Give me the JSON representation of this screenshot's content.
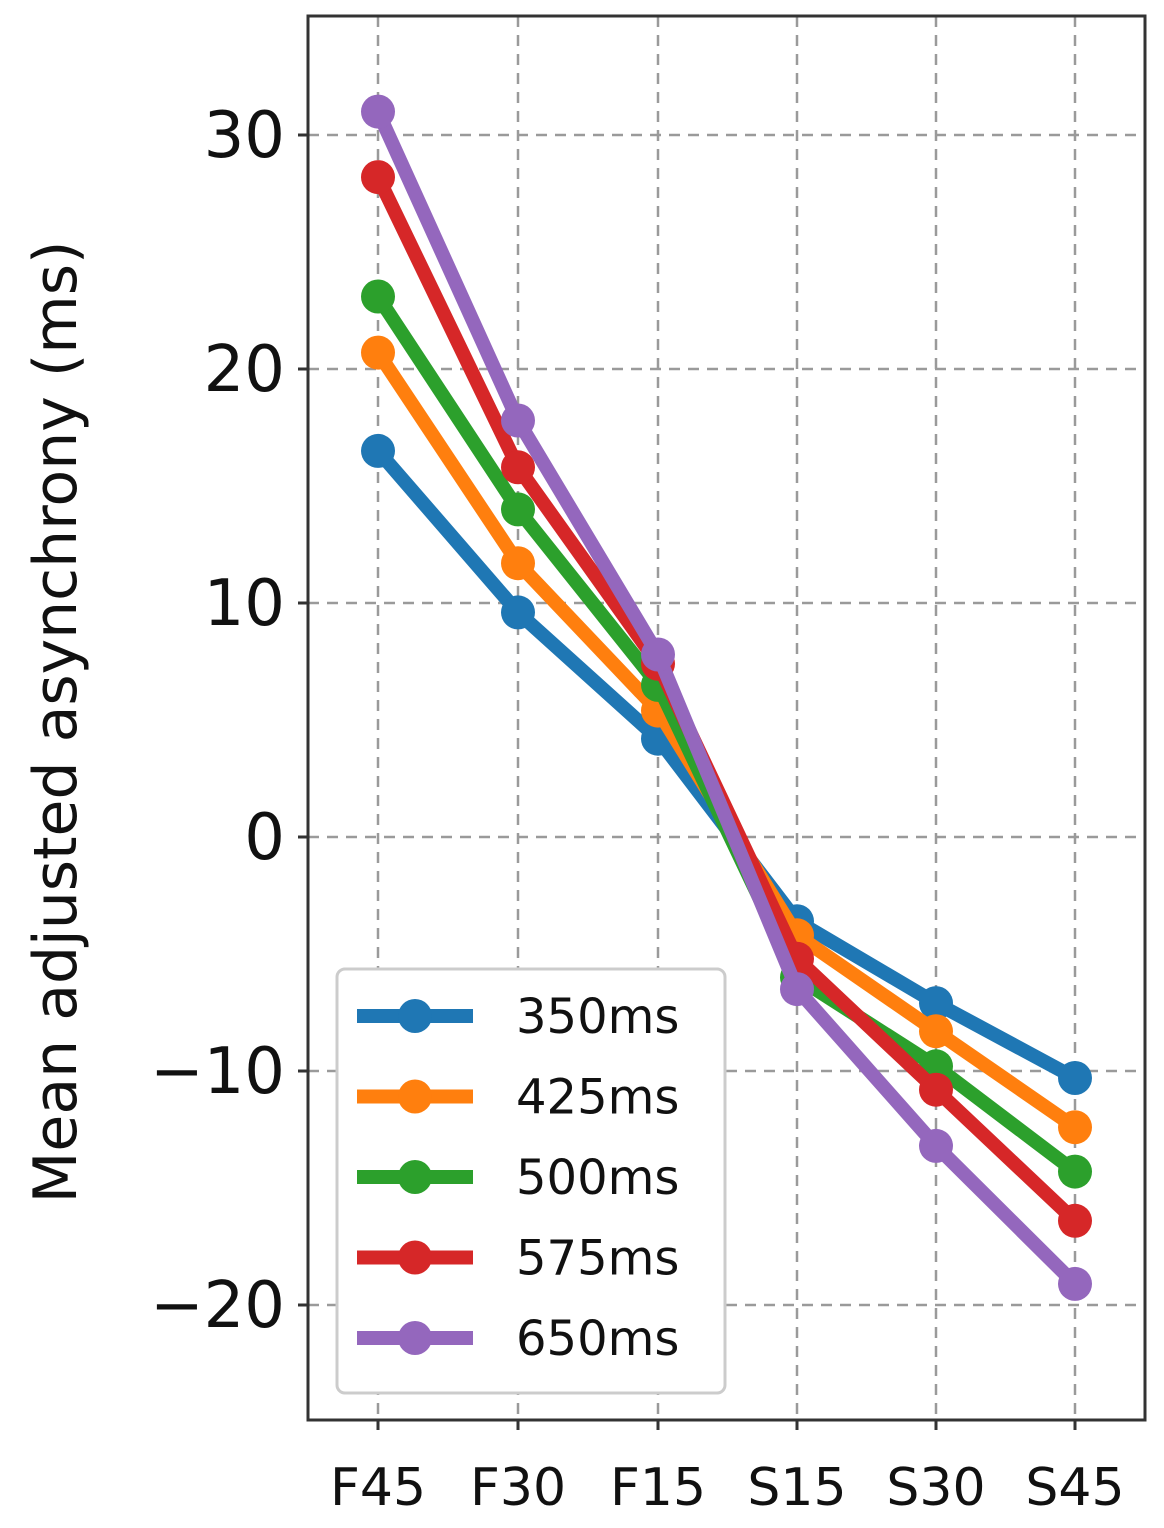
{
  "chart_data": {
    "type": "line",
    "title": "",
    "xlabel": "",
    "ylabel": "Mean adjusted asynchrony (ms)",
    "categories": [
      "F45",
      "F30",
      "F15",
      "S15",
      "S30",
      "S45"
    ],
    "ylim": [
      -25,
      35
    ],
    "yticks": [
      30,
      20,
      10,
      0,
      -10,
      -20
    ],
    "ytick_labels": [
      "30",
      "20",
      "10",
      "0",
      "−10",
      "−20"
    ],
    "grid": true,
    "legend_position": "lower-left",
    "series": [
      {
        "name": "350ms",
        "color": "#1f77b4",
        "values": [
          16.5,
          9.6,
          4.2,
          -3.6,
          -7.1,
          -10.3
        ]
      },
      {
        "name": "425ms",
        "color": "#ff7f0e",
        "values": [
          20.7,
          11.7,
          5.4,
          -4.2,
          -8.3,
          -12.4
        ]
      },
      {
        "name": "500ms",
        "color": "#2ca02c",
        "values": [
          23.1,
          14.0,
          6.5,
          -6.0,
          -9.8,
          -14.3
        ]
      },
      {
        "name": "575ms",
        "color": "#d62728",
        "values": [
          28.2,
          15.8,
          7.4,
          -5.2,
          -10.8,
          -16.4
        ]
      },
      {
        "name": "650ms",
        "color": "#9467bd",
        "values": [
          31.0,
          17.8,
          7.8,
          -6.5,
          -13.2,
          -19.1
        ]
      }
    ]
  }
}
